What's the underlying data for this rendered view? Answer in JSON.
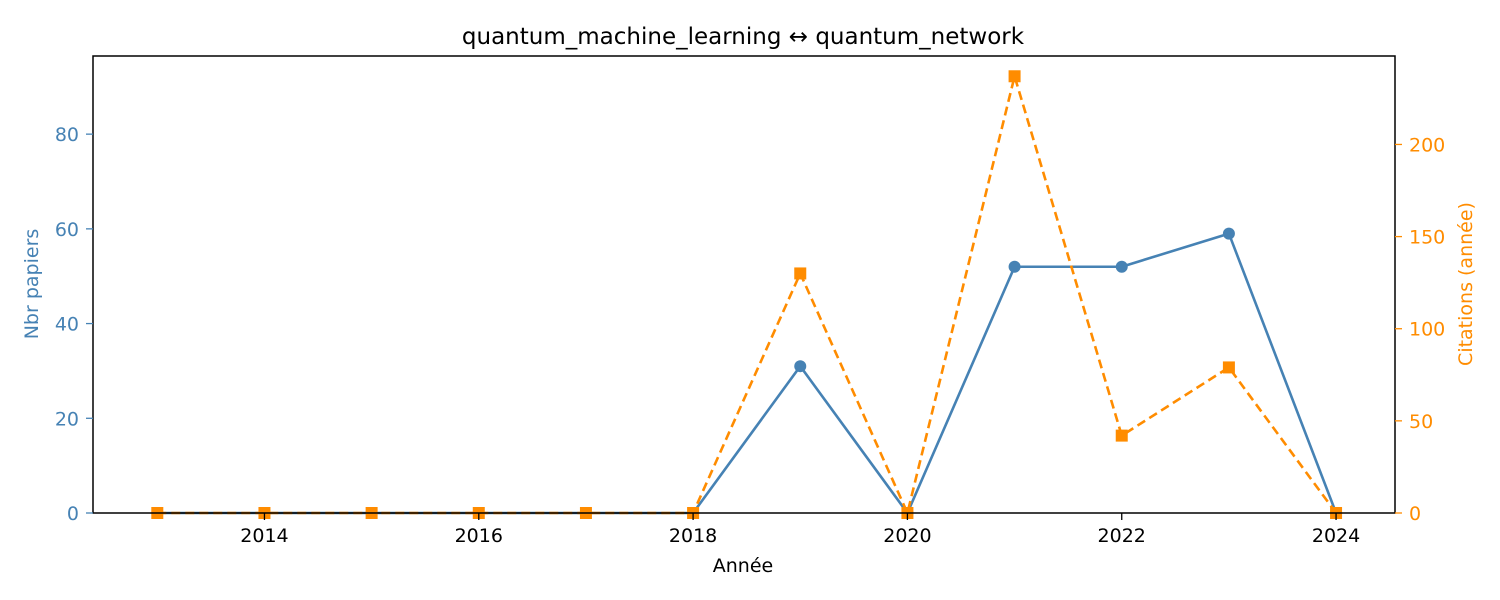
{
  "chart_data": {
    "type": "line",
    "title": "quantum_machine_learning  ↔  quantum_network",
    "xlabel": "Année",
    "ylabel_left": "Nbr papiers",
    "ylabel_right": "Citations (année)",
    "x": [
      2013,
      2014,
      2015,
      2016,
      2017,
      2018,
      2019,
      2020,
      2021,
      2022,
      2023,
      2024
    ],
    "x_ticks": [
      "2014",
      "2016",
      "2018",
      "2020",
      "2022",
      "2024"
    ],
    "xlim": [
      2012.4,
      2024.55
    ],
    "y_left_ticks": [
      "0",
      "20",
      "40",
      "60",
      "80"
    ],
    "y_left_lim": [
      0,
      96.5
    ],
    "y_right_ticks": [
      "0",
      "50",
      "100",
      "150",
      "200"
    ],
    "y_right_lim": [
      0,
      248
    ],
    "grid": false,
    "colors": {
      "left": "#4682b4",
      "right": "#ff8c00"
    },
    "series": [
      {
        "axis": "left",
        "marker": "circle",
        "line": "solid",
        "color": "#4682b4",
        "values": [
          0,
          0,
          0,
          0,
          0,
          0,
          31,
          0,
          52,
          52,
          59,
          0
        ]
      },
      {
        "axis": "right",
        "marker": "square",
        "line": "dashed",
        "color": "#ff8c00",
        "values": [
          0,
          0,
          0,
          0,
          0,
          0,
          130,
          0,
          237,
          42,
          79,
          0
        ]
      }
    ]
  }
}
